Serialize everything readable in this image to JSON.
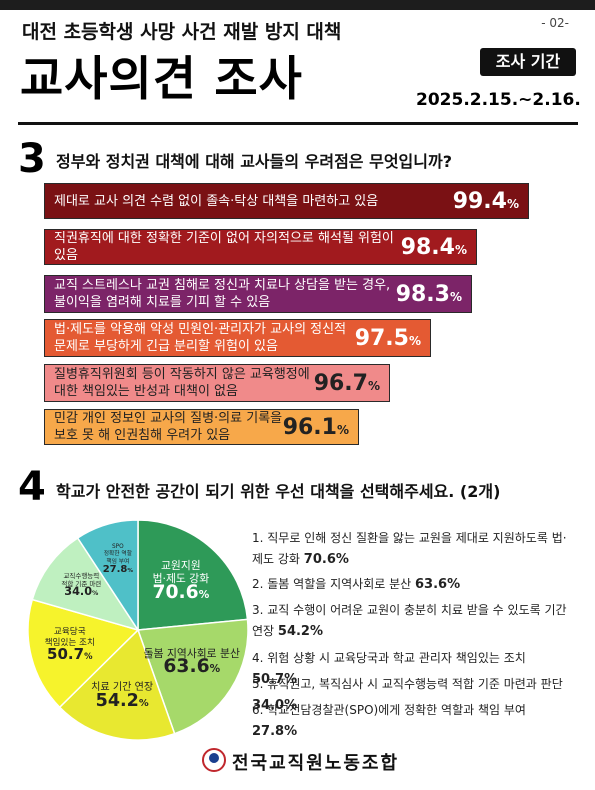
{
  "header": {
    "subtitle": "대전 초등학생 사망 사건 재발 방지 대책",
    "title": "교사의견 조사",
    "page": "- 02-",
    "period_label": "조사 기간",
    "period_dates": "2025.2.15.~2.16."
  },
  "q3": {
    "number": "3",
    "question": "정부와 정치권 대책에 대해 교사들의 우려점은 무엇입니까?"
  },
  "q4": {
    "number": "4",
    "question": "학교가 안전한 공간이 되기 위한 우선 대책을 선택해주세요. (2개)"
  },
  "footer": {
    "org": "전국교직원노동조합"
  },
  "colors": {
    "bars": [
      "#7a1114",
      "#a11a1e",
      "#7c2468",
      "#e45a33",
      "#f08a8a",
      "#f7a84a"
    ],
    "pie": [
      "#2e9a58",
      "#a6d96a",
      "#e8e830",
      "#f6f32c",
      "#bff0c0",
      "#4fc0c8"
    ]
  },
  "chart_data": [
    {
      "type": "bar",
      "orientation": "horizontal",
      "categories": [
        "제대로 교사 의견 수렴 없이 졸속·탁상 대책을 마련하고 있음",
        "직권휴직에 대한 정확한 기준이 없어 자의적으로 해석될 위험이 있음",
        "교직 스트레스나 교권 침해로 정신과 치료나 상담을 받는 경우, 불이익을 염려해 치료를 기피 할 수 있음",
        "법·제도를 악용해 악성 민원인·관리자가 교사의 정신적 문제로 부당하게 긴급 분리할 위험이 있음",
        "질병휴직위원회 등이 작동하지 않은 교육행정에 대한 책임있는 반성과 대책이 없음",
        "민감 개인 정보인 교사의 질병·의료 기록을 보호 못 해 인권침해 우려가 있음"
      ],
      "values": [
        99.4,
        98.4,
        98.3,
        97.5,
        96.7,
        96.1
      ],
      "unit": "%"
    },
    {
      "type": "pie",
      "categories": [
        "교원지원 법·제도 강화",
        "돌봄 지역사회로 분산",
        "치료 기간 연장",
        "교육당국 책임있는 조치",
        "교직수행능력 적합 기준 마련",
        "SPO 정확한 역할 책임 부여"
      ],
      "values": [
        70.6,
        63.6,
        54.2,
        50.7,
        34.0,
        27.8
      ],
      "value_labels": [
        "70.6",
        "63.6",
        "54.2",
        "50.7",
        "34.0",
        "27.8"
      ],
      "unit": "%",
      "legend": [
        {
          "num": "1.",
          "text": "직무로 인해 정신 질환을 앓는 교원을 제대로 지원하도록 법·제도 강화",
          "value": "70.6"
        },
        {
          "num": "2.",
          "text": "돌봄 역할을 지역사회로 분산",
          "value": "63.6"
        },
        {
          "num": "3.",
          "text": "교직 수행이 어려운 교원이 충분히 치료 받을 수 있도록 기간 연장",
          "value": "54.2"
        },
        {
          "num": "4.",
          "text": "위험 상황 시 교육당국과 학교 관리자 책임있는 조치",
          "value": "50.7"
        },
        {
          "num": "5.",
          "text": "휴직권고, 복직심사 시 교직수행능력 적합 기준 마련과 판단",
          "value": "34.0"
        },
        {
          "num": "6.",
          "text": "학교전담경찰관(SPO)에게 정확한 역할과 책임 부여",
          "value": "27.8"
        }
      ]
    }
  ]
}
